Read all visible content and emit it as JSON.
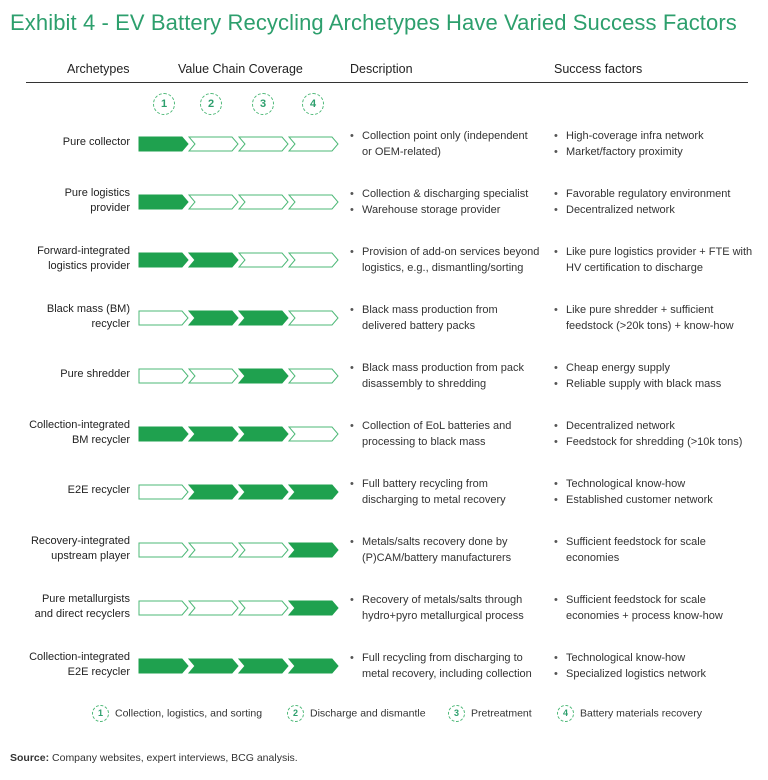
{
  "title": "Exhibit 4 - EV Battery Recycling Archetypes Have Varied Success Factors",
  "headers": {
    "archetypes": "Archetypes",
    "value_chain": "Value Chain Coverage",
    "description": "Description",
    "success": "Success factors"
  },
  "stages": [
    "1",
    "2",
    "3",
    "4"
  ],
  "colors": {
    "accent": "#2d9f6d",
    "filled": "#1fa14f",
    "outline": "#4db877"
  },
  "rows": [
    {
      "archetype": [
        "Pure collector"
      ],
      "coverage": [
        1,
        0,
        0,
        0
      ],
      "description": [
        "Collection point only (independent",
        "or OEM-related)"
      ],
      "description_bullets": [
        2
      ],
      "success": [
        "High-coverage infra network",
        "Market/factory proximity"
      ],
      "success_bullets": [
        1,
        1
      ]
    },
    {
      "archetype": [
        "Pure logistics",
        "provider"
      ],
      "coverage": [
        1,
        0,
        0,
        0
      ],
      "description": [
        "Collection & discharging specialist",
        "Warehouse storage provider"
      ],
      "description_bullets": [
        1,
        1
      ],
      "success": [
        "Favorable regulatory environment",
        "Decentralized network"
      ],
      "success_bullets": [
        1,
        1
      ]
    },
    {
      "archetype": [
        "Forward-integrated",
        "logistics provider"
      ],
      "coverage": [
        1,
        1,
        0,
        0
      ],
      "description": [
        "Provision of add-on services beyond",
        "logistics, e.g., dismantling/sorting"
      ],
      "description_bullets": [
        2
      ],
      "success": [
        "Like pure logistics provider + FTE with",
        "HV certification to discharge"
      ],
      "success_bullets": [
        2
      ]
    },
    {
      "archetype": [
        "Black mass (BM)",
        "recycler"
      ],
      "coverage": [
        0,
        1,
        1,
        0
      ],
      "description": [
        "Black mass production from",
        "delivered battery packs"
      ],
      "description_bullets": [
        2
      ],
      "success": [
        "Like pure shredder + sufficient",
        "feedstock (>20k tons) + know-how"
      ],
      "success_bullets": [
        2
      ]
    },
    {
      "archetype": [
        "Pure shredder"
      ],
      "coverage": [
        0,
        0,
        1,
        0
      ],
      "description": [
        "Black mass production from pack",
        "disassembly to shredding"
      ],
      "description_bullets": [
        2
      ],
      "success": [
        "Cheap energy supply",
        "Reliable supply with black mass"
      ],
      "success_bullets": [
        1,
        1
      ]
    },
    {
      "archetype": [
        "Collection-integrated",
        "BM recycler"
      ],
      "coverage": [
        1,
        1,
        1,
        0
      ],
      "description": [
        "Collection of EoL batteries and",
        "processing to black mass"
      ],
      "description_bullets": [
        2
      ],
      "success": [
        "Decentralized network",
        "Feedstock for shredding (>10k tons)"
      ],
      "success_bullets": [
        1,
        1
      ]
    },
    {
      "archetype": [
        "E2E recycler"
      ],
      "coverage": [
        0,
        1,
        1,
        1
      ],
      "description": [
        "Full battery recycling from",
        "discharging to metal recovery"
      ],
      "description_bullets": [
        2
      ],
      "success": [
        "Technological know-how",
        "Established customer network"
      ],
      "success_bullets": [
        1,
        1
      ]
    },
    {
      "archetype": [
        "Recovery-integrated",
        "upstream player"
      ],
      "coverage": [
        0,
        0,
        0,
        1
      ],
      "description": [
        "Metals/salts recovery done by",
        "(P)CAM/battery manufacturers"
      ],
      "description_bullets": [
        2
      ],
      "success": [
        "Sufficient feedstock for scale",
        "economies"
      ],
      "success_bullets": [
        2
      ]
    },
    {
      "archetype": [
        "Pure metallurgists",
        "and direct recyclers"
      ],
      "coverage": [
        0,
        0,
        0,
        1
      ],
      "description": [
        "Recovery of metals/salts through",
        "hydro+pyro metallurgical process"
      ],
      "description_bullets": [
        2
      ],
      "success": [
        "Sufficient feedstock for scale",
        "economies + process know-how"
      ],
      "success_bullets": [
        2
      ]
    },
    {
      "archetype": [
        "Collection-integrated",
        "E2E recycler"
      ],
      "coverage": [
        1,
        1,
        1,
        1
      ],
      "description": [
        "Full recycling from discharging to",
        "metal recovery, including collection"
      ],
      "description_bullets": [
        2
      ],
      "success": [
        "Technological know-how",
        "Specialized logistics network"
      ],
      "success_bullets": [
        1,
        1
      ]
    }
  ],
  "legend": [
    {
      "num": "1",
      "label": "Collection, logistics, and sorting"
    },
    {
      "num": "2",
      "label": "Discharge and dismantle"
    },
    {
      "num": "3",
      "label": "Pretreatment"
    },
    {
      "num": "4",
      "label": "Battery materials recovery"
    }
  ],
  "source": {
    "label": "Source:",
    "text": "Company websites, expert interviews, BCG analysis."
  }
}
